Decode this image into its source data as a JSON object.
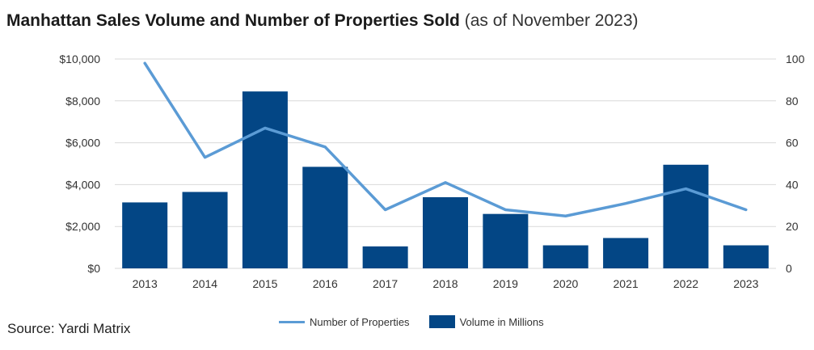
{
  "chart_data": {
    "type": "bar",
    "title": "Manhattan Sales Volume and Number of Properties Sold",
    "subtitle": "(as of November 2023)",
    "categories": [
      "2013",
      "2014",
      "2015",
      "2016",
      "2017",
      "2018",
      "2019",
      "2020",
      "2021",
      "2022",
      "2023"
    ],
    "series": [
      {
        "name": "Volume in Millions",
        "type": "bar",
        "axis": "left",
        "color": "#034685",
        "values": [
          3150,
          3650,
          8450,
          4850,
          1050,
          3400,
          2600,
          1100,
          1450,
          4950,
          1100
        ]
      },
      {
        "name": "Number of Properties",
        "type": "line",
        "axis": "right",
        "color": "#5b9bd5",
        "values": [
          98,
          53,
          67,
          58,
          28,
          41,
          28,
          25,
          31,
          38,
          28
        ]
      }
    ],
    "yleft": {
      "min": 0,
      "max": 10000,
      "ticks": [
        0,
        2000,
        4000,
        6000,
        8000,
        10000
      ],
      "tick_labels": [
        "$0",
        "$2,000",
        "$4,000",
        "$6,000",
        "$8,000",
        "$10,000"
      ]
    },
    "yright": {
      "min": 0,
      "max": 100,
      "ticks": [
        0,
        20,
        40,
        60,
        80,
        100
      ],
      "tick_labels": [
        "0",
        "20",
        "40",
        "60",
        "80",
        "100"
      ]
    },
    "grid": true,
    "legend_position": "bottom"
  },
  "source": "Source: Yardi Matrix"
}
